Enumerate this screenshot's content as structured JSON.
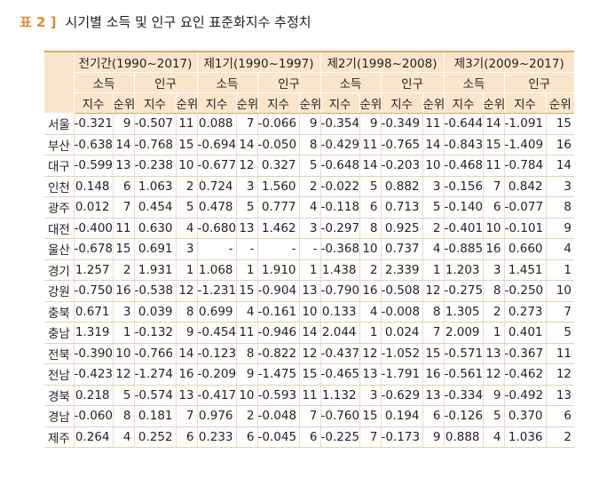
{
  "caption": {
    "label": "표 2 ]",
    "title": "시기별 소득 및 인구 요인 표준화지수 추정치"
  },
  "headers": {
    "periods": [
      "전기간(1990~2017)",
      "제1기(1990~1997)",
      "제2기(1998~2008)",
      "제3기(2009~2017)"
    ],
    "factors": [
      "소득",
      "인구"
    ],
    "subs": [
      "지수",
      "순위"
    ]
  },
  "rows": [
    {
      "region": "서울",
      "v": [
        "-0.321",
        "9",
        "-0.507",
        "11",
        "0.088",
        "7",
        "-0.066",
        "9",
        "-0.354",
        "9",
        "-0.349",
        "11",
        "-0.644",
        "14",
        "-1.091",
        "15"
      ]
    },
    {
      "region": "부산",
      "v": [
        "-0.638",
        "14",
        "-0.768",
        "15",
        "-0.694",
        "14",
        "-0.050",
        "8",
        "-0.429",
        "11",
        "-0.765",
        "14",
        "-0.843",
        "15",
        "-1.409",
        "16"
      ]
    },
    {
      "region": "대구",
      "v": [
        "-0.599",
        "13",
        "-0.238",
        "10",
        "-0.677",
        "12",
        "0.327",
        "5",
        "-0.648",
        "14",
        "-0.203",
        "10",
        "-0.468",
        "11",
        "-0.784",
        "14"
      ]
    },
    {
      "region": "인천",
      "v": [
        "0.148",
        "6",
        "1.063",
        "2",
        "0.724",
        "3",
        "1.560",
        "2",
        "-0.022",
        "5",
        "0.882",
        "3",
        "-0.156",
        "7",
        "0.842",
        "3"
      ]
    },
    {
      "region": "광주",
      "v": [
        "0.012",
        "7",
        "0.454",
        "5",
        "0.478",
        "5",
        "0.777",
        "4",
        "-0.118",
        "6",
        "0.713",
        "5",
        "-0.140",
        "6",
        "-0.077",
        "8"
      ]
    },
    {
      "region": "대전",
      "v": [
        "-0.400",
        "11",
        "0.630",
        "4",
        "-0.680",
        "13",
        "1.462",
        "3",
        "-0.297",
        "8",
        "0.925",
        "2",
        "-0.401",
        "10",
        "-0.101",
        "9"
      ]
    },
    {
      "region": "울산",
      "v": [
        "-0.678",
        "15",
        "0.691",
        "3",
        "-",
        "-",
        "-",
        "-",
        "-0.368",
        "10",
        "0.737",
        "4",
        "-0.885",
        "16",
        "0.660",
        "4"
      ]
    },
    {
      "region": "경기",
      "v": [
        "1.257",
        "2",
        "1.931",
        "1",
        "1.068",
        "1",
        "1.910",
        "1",
        "1.438",
        "2",
        "2.339",
        "1",
        "1.203",
        "3",
        "1.451",
        "1"
      ]
    },
    {
      "region": "강원",
      "v": [
        "-0.750",
        "16",
        "-0.538",
        "12",
        "-1.231",
        "15",
        "-0.904",
        "13",
        "-0.790",
        "16",
        "-0.508",
        "12",
        "-0.275",
        "8",
        "-0.250",
        "10"
      ]
    },
    {
      "region": "충북",
      "v": [
        "0.671",
        "3",
        "0.039",
        "8",
        "0.699",
        "4",
        "-0.161",
        "10",
        "0.133",
        "4",
        "-0.008",
        "8",
        "1.305",
        "2",
        "0.273",
        "7"
      ]
    },
    {
      "region": "충남",
      "v": [
        "1.319",
        "1",
        "-0.132",
        "9",
        "-0.454",
        "11",
        "-0.946",
        "14",
        "2.044",
        "1",
        "0.024",
        "7",
        "2.009",
        "1",
        "0.401",
        "5"
      ]
    },
    {
      "region": "전북",
      "v": [
        "-0.390",
        "10",
        "-0.766",
        "14",
        "-0.123",
        "8",
        "-0.822",
        "12",
        "-0.437",
        "12",
        "-1.052",
        "15",
        "-0.571",
        "13",
        "-0.367",
        "11"
      ]
    },
    {
      "region": "전남",
      "v": [
        "-0.423",
        "12",
        "-1.274",
        "16",
        "-0.209",
        "9",
        "-1.475",
        "15",
        "-0.465",
        "13",
        "-1.791",
        "16",
        "-0.561",
        "12",
        "-0.462",
        "12"
      ]
    },
    {
      "region": "경북",
      "v": [
        "0.218",
        "5",
        "-0.574",
        "13",
        "-0.417",
        "10",
        "-0.593",
        "11",
        "1.132",
        "3",
        "-0.629",
        "13",
        "-0.334",
        "9",
        "-0.492",
        "13"
      ]
    },
    {
      "region": "경남",
      "v": [
        "-0.060",
        "8",
        "0.181",
        "7",
        "0.976",
        "2",
        "-0.048",
        "7",
        "-0.760",
        "15",
        "0.194",
        "6",
        "-0.126",
        "5",
        "0.370",
        "6"
      ]
    },
    {
      "region": "제주",
      "v": [
        "0.264",
        "4",
        "0.252",
        "6",
        "0.233",
        "6",
        "-0.045",
        "6",
        "-0.225",
        "7",
        "-0.173",
        "9",
        "0.888",
        "4",
        "1.036",
        "2"
      ]
    }
  ]
}
